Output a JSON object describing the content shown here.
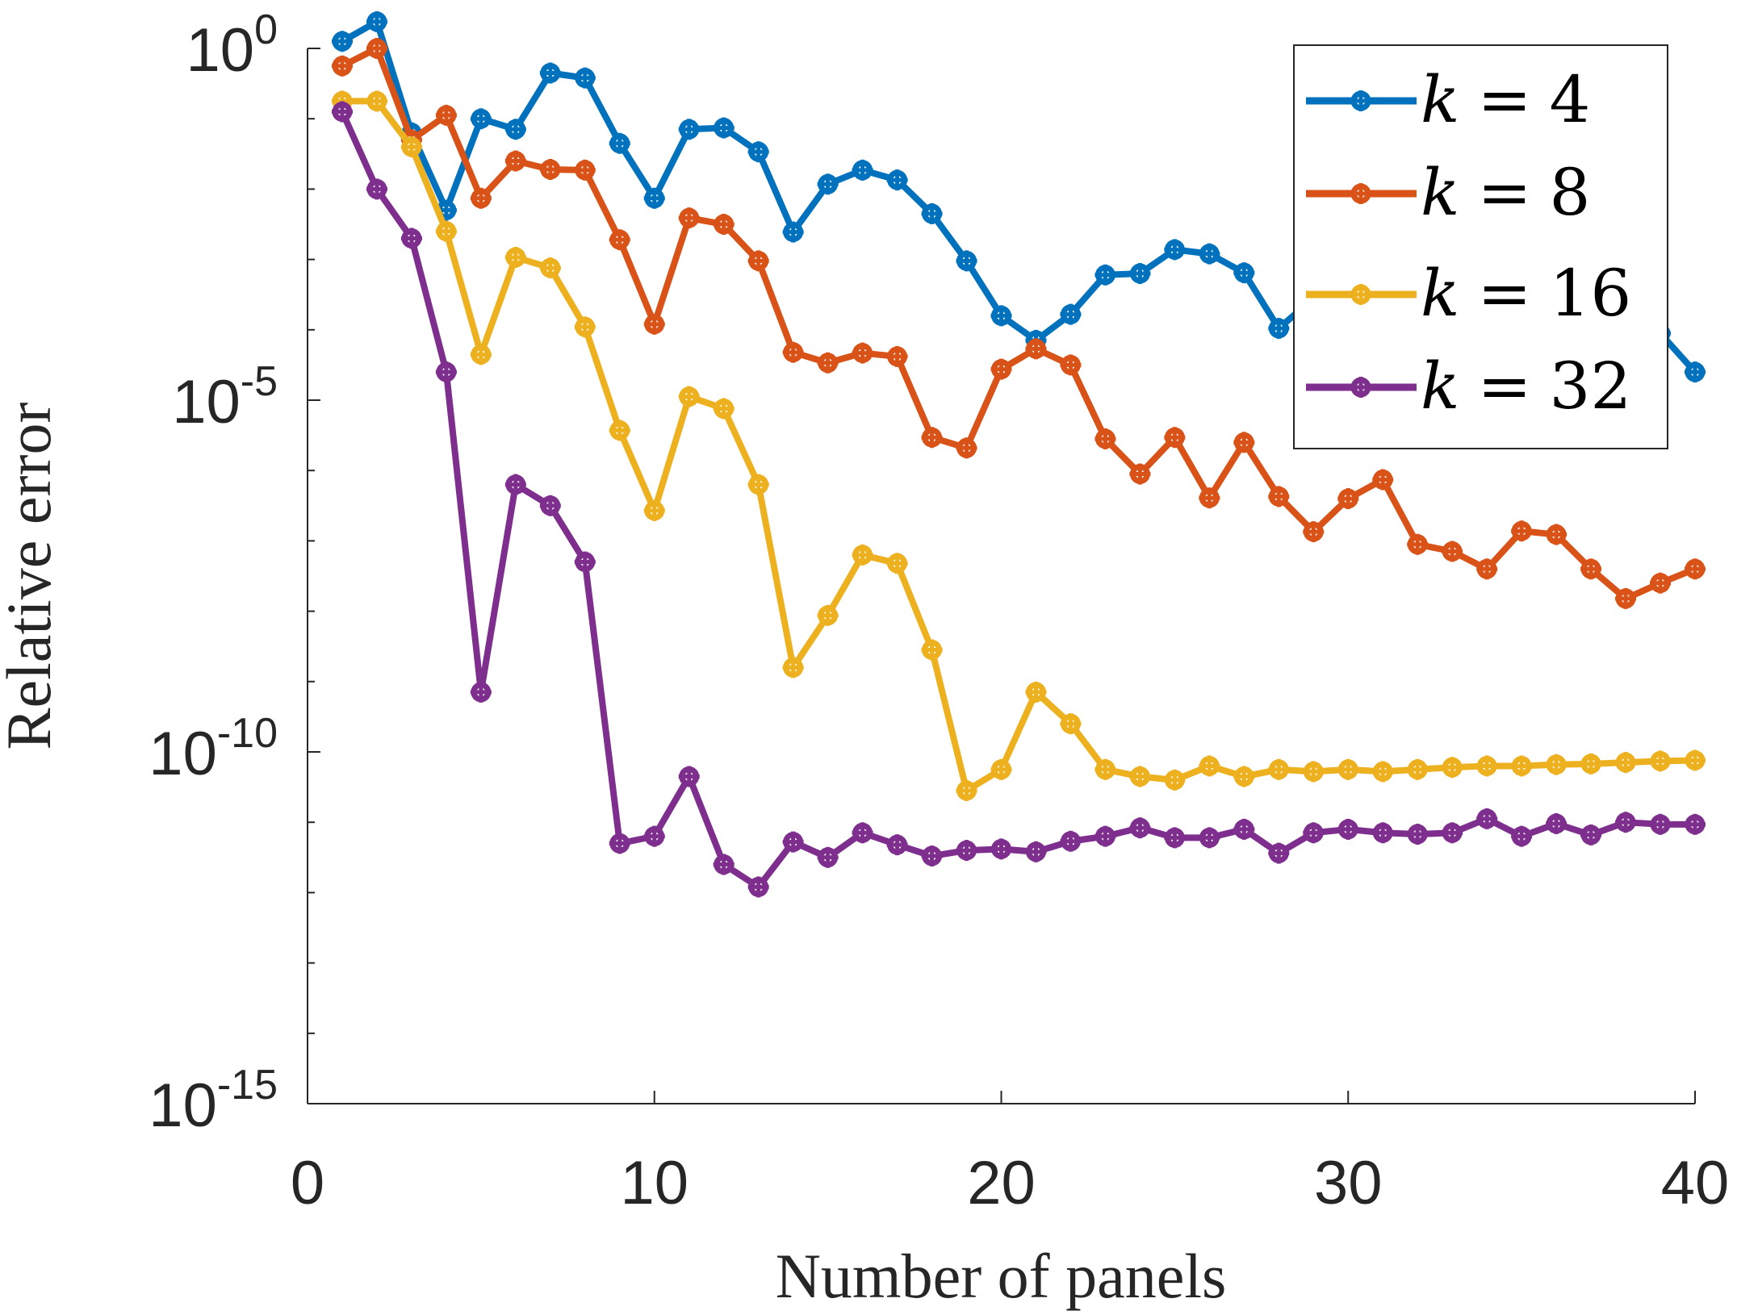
{
  "chart_data": {
    "type": "line",
    "title": "",
    "xlabel": "Number of panels",
    "ylabel": "Relative error",
    "yscale": "log",
    "xlim": [
      0,
      40
    ],
    "ylim_exponent": [
      -15,
      0
    ],
    "x_ticks": [
      {
        "value": 0,
        "label": "0"
      },
      {
        "value": 10,
        "label": "10"
      },
      {
        "value": 20,
        "label": "20"
      },
      {
        "value": 30,
        "label": "30"
      },
      {
        "value": 40,
        "label": "40"
      }
    ],
    "y_ticks": [
      {
        "exponent": 0,
        "base": "10",
        "power": "0"
      },
      {
        "exponent": -5,
        "base": "10",
        "power": "-5"
      },
      {
        "exponent": -10,
        "base": "10",
        "power": "-10"
      },
      {
        "exponent": -15,
        "base": "10",
        "power": "-15"
      }
    ],
    "legend_position": "top-right",
    "x": [
      1,
      2,
      3,
      4,
      5,
      6,
      7,
      8,
      9,
      10,
      11,
      12,
      13,
      14,
      15,
      16,
      17,
      18,
      19,
      20,
      21,
      22,
      23,
      24,
      25,
      26,
      27,
      28,
      29,
      30,
      31,
      32,
      33,
      34,
      35,
      36,
      37,
      38,
      39,
      40
    ],
    "series": [
      {
        "name": "k = 4",
        "legend_var": "k",
        "legend_eq": "=",
        "legend_num": "4",
        "color": "#0072BD",
        "log10_values": [
          0.1,
          0.38,
          -1.2,
          -2.3,
          -1.0,
          -1.15,
          -0.35,
          -0.42,
          -1.35,
          -2.13,
          -1.15,
          -1.13,
          -1.47,
          -2.61,
          -1.93,
          -1.73,
          -1.87,
          -2.35,
          -3.02,
          -3.8,
          -4.15,
          -3.78,
          -3.22,
          -3.2,
          -2.86,
          -2.92,
          -3.19,
          -3.98,
          -3.55,
          -3.05,
          -3.02,
          -3.35,
          -3.7,
          -3.55,
          -3.4,
          -3.25,
          -3.5,
          -3.8,
          -4.05,
          -4.6
        ]
      },
      {
        "name": "k = 8",
        "legend_var": "k",
        "legend_eq": "=",
        "legend_num": "8",
        "color": "#D95319",
        "log10_values": [
          -0.25,
          0.0,
          -1.3,
          -0.95,
          -2.13,
          -1.6,
          -1.72,
          -1.73,
          -2.72,
          -3.92,
          -2.41,
          -2.5,
          -3.02,
          -4.32,
          -4.47,
          -4.33,
          -4.38,
          -5.53,
          -5.68,
          -4.56,
          -4.27,
          -4.5,
          -5.55,
          -6.05,
          -5.53,
          -6.39,
          -5.6,
          -6.37,
          -6.87,
          -6.4,
          -6.13,
          -7.05,
          -7.15,
          -7.4,
          -6.86,
          -6.91,
          -7.4,
          -7.82,
          -7.6,
          -7.4
        ]
      },
      {
        "name": "k = 16",
        "legend_var": "k",
        "legend_eq": "=",
        "legend_num": "16",
        "color": "#EDB120",
        "log10_values": [
          -0.75,
          -0.75,
          -1.4,
          -2.6,
          -4.35,
          -2.97,
          -3.12,
          -3.96,
          -5.43,
          -6.57,
          -4.95,
          -5.12,
          -6.2,
          -8.8,
          -8.06,
          -7.2,
          -7.32,
          -8.55,
          -10.55,
          -10.25,
          -9.15,
          -9.6,
          -10.25,
          -10.35,
          -10.4,
          -10.2,
          -10.35,
          -10.25,
          -10.28,
          -10.25,
          -10.28,
          -10.25,
          -10.22,
          -10.2,
          -10.2,
          -10.18,
          -10.17,
          -10.15,
          -10.13,
          -10.12
        ]
      },
      {
        "name": "k = 32",
        "legend_var": "k",
        "legend_eq": "=",
        "legend_num": "32",
        "color": "#7E2F8E",
        "log10_values": [
          -0.9,
          -2.0,
          -2.7,
          -4.6,
          -9.15,
          -6.2,
          -6.5,
          -7.3,
          -11.3,
          -11.2,
          -10.35,
          -11.6,
          -11.92,
          -11.28,
          -11.5,
          -11.15,
          -11.32,
          -11.48,
          -11.4,
          -11.38,
          -11.42,
          -11.27,
          -11.2,
          -11.08,
          -11.22,
          -11.22,
          -11.1,
          -11.44,
          -11.15,
          -11.1,
          -11.15,
          -11.17,
          -11.15,
          -10.95,
          -11.2,
          -11.02,
          -11.18,
          -11.0,
          -11.03,
          -11.03
        ]
      }
    ]
  }
}
